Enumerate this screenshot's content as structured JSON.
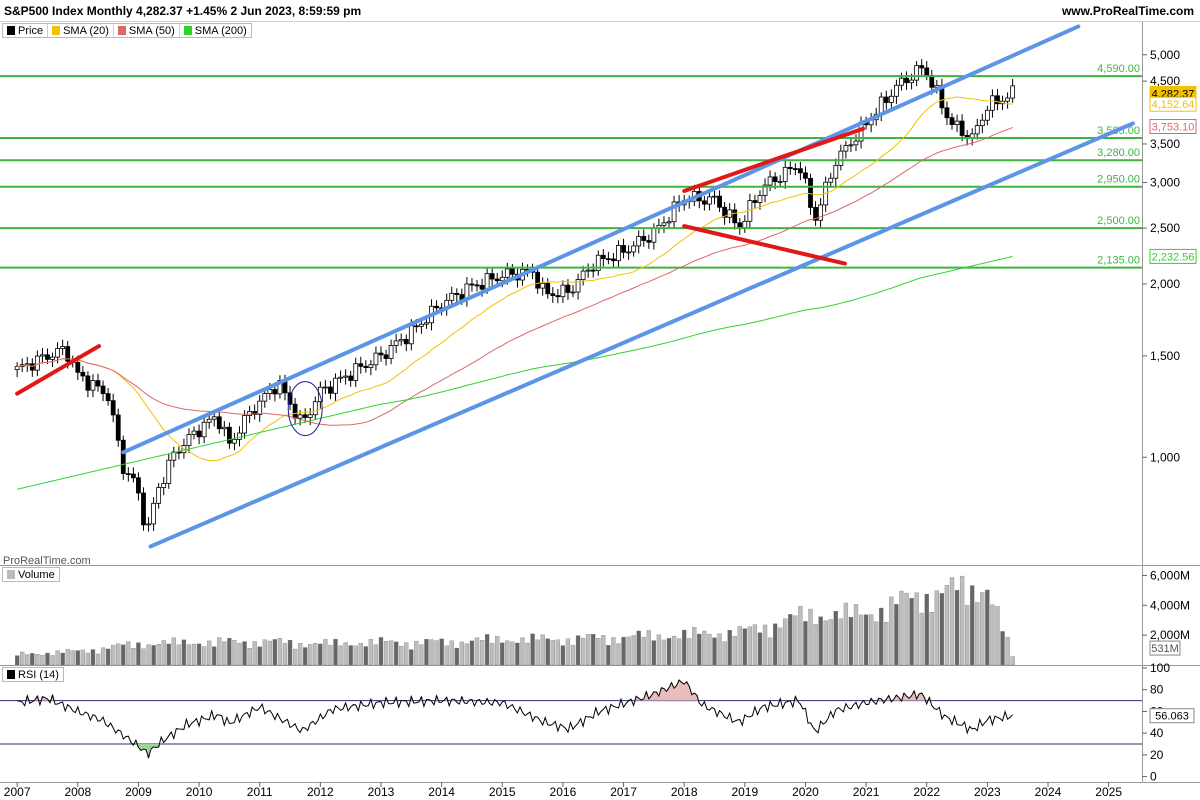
{
  "header": {
    "title": "S&P500 Index Monthly 4,282.37 +1.45% 2 Jun 2023, 8:59:59 pm",
    "site": "www.ProRealTime.com"
  },
  "legend": [
    {
      "label": "Price",
      "color": "#000000"
    },
    {
      "label": "SMA (20)",
      "color": "#f2c200"
    },
    {
      "label": "SMA (50)",
      "color": "#d96a6a"
    },
    {
      "label": "SMA (200)",
      "color": "#2fd22f"
    }
  ],
  "watermark": "ProRealTime.com",
  "volume_label": "Volume",
  "rsi_label": "RSI (14)",
  "chart_data": [
    {
      "type": "candlestick",
      "title": "S&P500 Index Monthly",
      "scale": "log",
      "ylim": [
        650,
        5700
      ],
      "y_ticks": [
        1000,
        1500,
        2000,
        2500,
        3000,
        3500,
        4500,
        5000
      ],
      "y_tick_labels": [
        "1,000",
        "1,500",
        "2,000",
        "2,500",
        "3,000",
        "3,500",
        "4,500",
        "5,000"
      ],
      "x_labels": [
        "2007",
        "2008",
        "2009",
        "2010",
        "2011",
        "2012",
        "2013",
        "2014",
        "2015",
        "2016",
        "2017",
        "2018",
        "2019",
        "2020",
        "2021",
        "2022",
        "2023",
        "2024",
        "2025"
      ],
      "close_points": [
        {
          "t": 2007.0,
          "v": 1420
        },
        {
          "t": 2007.5,
          "v": 1500
        },
        {
          "t": 2007.8,
          "v": 1540
        },
        {
          "t": 2008.0,
          "v": 1390
        },
        {
          "t": 2008.5,
          "v": 1280
        },
        {
          "t": 2008.75,
          "v": 960
        },
        {
          "t": 2008.95,
          "v": 900
        },
        {
          "t": 2009.15,
          "v": 740
        },
        {
          "t": 2009.3,
          "v": 870
        },
        {
          "t": 2009.6,
          "v": 1020
        },
        {
          "t": 2010.0,
          "v": 1120
        },
        {
          "t": 2010.3,
          "v": 1180
        },
        {
          "t": 2010.5,
          "v": 1050
        },
        {
          "t": 2010.8,
          "v": 1180
        },
        {
          "t": 2011.3,
          "v": 1350
        },
        {
          "t": 2011.7,
          "v": 1140
        },
        {
          "t": 2012.0,
          "v": 1300
        },
        {
          "t": 2012.5,
          "v": 1400
        },
        {
          "t": 2013.0,
          "v": 1500
        },
        {
          "t": 2013.5,
          "v": 1650
        },
        {
          "t": 2014.0,
          "v": 1850
        },
        {
          "t": 2014.5,
          "v": 1980
        },
        {
          "t": 2015.0,
          "v": 2070
        },
        {
          "t": 2015.5,
          "v": 2100
        },
        {
          "t": 2015.7,
          "v": 1920
        },
        {
          "t": 2016.1,
          "v": 1940
        },
        {
          "t": 2016.5,
          "v": 2170
        },
        {
          "t": 2017.0,
          "v": 2280
        },
        {
          "t": 2017.5,
          "v": 2450
        },
        {
          "t": 2018.0,
          "v": 2820
        },
        {
          "t": 2018.5,
          "v": 2800
        },
        {
          "t": 2018.9,
          "v": 2510
        },
        {
          "t": 2019.3,
          "v": 2950
        },
        {
          "t": 2019.9,
          "v": 3230
        },
        {
          "t": 2020.15,
          "v": 2580
        },
        {
          "t": 2020.5,
          "v": 3270
        },
        {
          "t": 2021.0,
          "v": 3800
        },
        {
          "t": 2021.5,
          "v": 4400
        },
        {
          "t": 2021.95,
          "v": 4770
        },
        {
          "t": 2022.4,
          "v": 3800
        },
        {
          "t": 2022.75,
          "v": 3580
        },
        {
          "t": 2023.0,
          "v": 4070
        },
        {
          "t": 2023.42,
          "v": 4282
        }
      ],
      "price_levels": [
        {
          "value": 4590,
          "label": "4,590.00"
        },
        {
          "value": 3585,
          "label": "3,585.00"
        },
        {
          "value": 3280,
          "label": "3,280.00"
        },
        {
          "value": 2950,
          "label": "2,950.00"
        },
        {
          "value": 2500,
          "label": "2,500.00"
        },
        {
          "value": 2135,
          "label": "2,135.00"
        }
      ],
      "right_value_tags": [
        {
          "value": 4282.37,
          "label": "4,282.37",
          "color": "#f2c200"
        },
        {
          "value": 4152.64,
          "label": "4,152.64",
          "color": "#f2c200"
        },
        {
          "value": 3753.1,
          "label": "3,753.10",
          "color": "#d96a6a"
        },
        {
          "value": 2232.56,
          "label": "2,232.56",
          "color": "#2fd22f"
        }
      ],
      "trendlines": [
        {
          "color": "#5c94e8",
          "from": {
            "t": 2008.75,
            "v": 1020
          },
          "to": {
            "t": 2024.5,
            "v": 5600
          }
        },
        {
          "color": "#5c94e8",
          "from": {
            "t": 2009.2,
            "v": 700
          },
          "to": {
            "t": 2025.4,
            "v": 3800
          }
        },
        {
          "color": "#e01818",
          "from": {
            "t": 2007.0,
            "v": 1290
          },
          "to": {
            "t": 2008.35,
            "v": 1560
          }
        },
        {
          "color": "#e01818",
          "from": {
            "t": 2018.0,
            "v": 2900
          },
          "to": {
            "t": 2020.95,
            "v": 3720
          }
        },
        {
          "color": "#e01818",
          "from": {
            "t": 2018.0,
            "v": 2520
          },
          "to": {
            "t": 2020.65,
            "v": 2170
          }
        }
      ],
      "sma_colors": {
        "sma20": "#f2c200",
        "sma50": "#d96a6a",
        "sma200": "#2fd22f"
      }
    },
    {
      "type": "bar",
      "title": "Volume",
      "y_tick_labels": [
        "2,000M",
        "4,000M",
        "6,000M"
      ],
      "y_ticks": [
        2000,
        4000,
        6000
      ],
      "ylim": [
        0,
        6500
      ],
      "current_label": "531M",
      "profile": [
        {
          "t": 2007.0,
          "v": 700
        },
        {
          "t": 2008.0,
          "v": 900
        },
        {
          "t": 2009.0,
          "v": 1400
        },
        {
          "t": 2010.0,
          "v": 1500
        },
        {
          "t": 2011.0,
          "v": 1550
        },
        {
          "t": 2012.0,
          "v": 1400
        },
        {
          "t": 2013.0,
          "v": 1500
        },
        {
          "t": 2014.0,
          "v": 1500
        },
        {
          "t": 2015.0,
          "v": 1700
        },
        {
          "t": 2016.0,
          "v": 1700
        },
        {
          "t": 2017.0,
          "v": 1850
        },
        {
          "t": 2018.0,
          "v": 2000
        },
        {
          "t": 2019.0,
          "v": 2200
        },
        {
          "t": 2020.0,
          "v": 3300
        },
        {
          "t": 2021.0,
          "v": 3400
        },
        {
          "t": 2022.0,
          "v": 4700
        },
        {
          "t": 2023.0,
          "v": 5200
        },
        {
          "t": 2023.42,
          "v": 531
        }
      ]
    },
    {
      "type": "line",
      "title": "RSI (14)",
      "y_ticks": [
        0,
        20,
        40,
        60,
        80,
        100
      ],
      "y_tick_labels": [
        "0",
        "20",
        "40",
        "60",
        "80",
        "100"
      ],
      "ylim": [
        -5,
        100
      ],
      "overbought": 70,
      "oversold": 30,
      "current_label": "56.063",
      "points": [
        {
          "t": 2007.0,
          "v": 68
        },
        {
          "t": 2007.5,
          "v": 72
        },
        {
          "t": 2008.0,
          "v": 60
        },
        {
          "t": 2008.4,
          "v": 52
        },
        {
          "t": 2008.75,
          "v": 38
        },
        {
          "t": 2009.0,
          "v": 28
        },
        {
          "t": 2009.15,
          "v": 21
        },
        {
          "t": 2009.4,
          "v": 33
        },
        {
          "t": 2009.8,
          "v": 48
        },
        {
          "t": 2010.3,
          "v": 57
        },
        {
          "t": 2010.5,
          "v": 49
        },
        {
          "t": 2011.0,
          "v": 64
        },
        {
          "t": 2011.7,
          "v": 42
        },
        {
          "t": 2012.2,
          "v": 62
        },
        {
          "t": 2013.0,
          "v": 68
        },
        {
          "t": 2014.0,
          "v": 70
        },
        {
          "t": 2015.0,
          "v": 68
        },
        {
          "t": 2015.7,
          "v": 50
        },
        {
          "t": 2016.1,
          "v": 44
        },
        {
          "t": 2016.6,
          "v": 60
        },
        {
          "t": 2017.5,
          "v": 76
        },
        {
          "t": 2018.0,
          "v": 88
        },
        {
          "t": 2018.3,
          "v": 66
        },
        {
          "t": 2018.9,
          "v": 50
        },
        {
          "t": 2019.3,
          "v": 64
        },
        {
          "t": 2019.9,
          "v": 70
        },
        {
          "t": 2020.15,
          "v": 41
        },
        {
          "t": 2020.5,
          "v": 61
        },
        {
          "t": 2021.0,
          "v": 68
        },
        {
          "t": 2021.9,
          "v": 76
        },
        {
          "t": 2022.3,
          "v": 55
        },
        {
          "t": 2022.75,
          "v": 43
        },
        {
          "t": 2023.0,
          "v": 52
        },
        {
          "t": 2023.42,
          "v": 56.063
        }
      ]
    }
  ]
}
